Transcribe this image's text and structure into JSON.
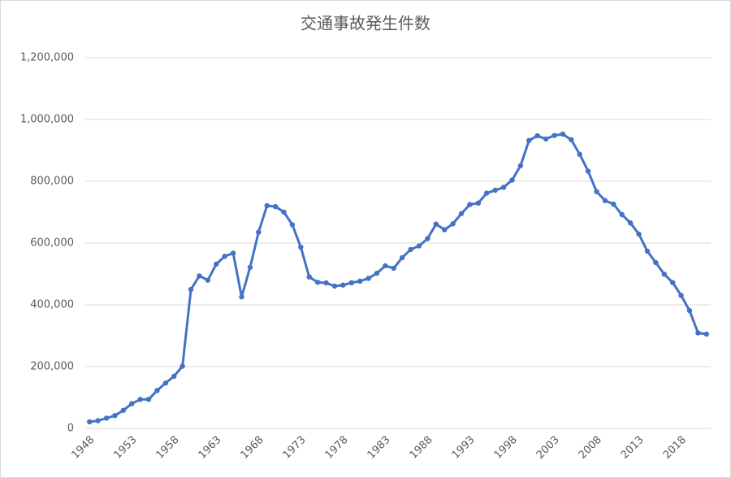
{
  "chart_data": {
    "type": "line",
    "title": "交通事故発生件数",
    "categories": [
      "1948",
      null,
      null,
      null,
      null,
      "1953",
      null,
      null,
      null,
      null,
      "1958",
      null,
      null,
      null,
      null,
      "1963",
      null,
      null,
      null,
      null,
      "1968",
      null,
      null,
      null,
      null,
      "1973",
      null,
      null,
      null,
      null,
      "1978",
      null,
      null,
      null,
      null,
      "1983",
      null,
      null,
      null,
      null,
      "1988",
      null,
      null,
      null,
      null,
      "1993",
      null,
      null,
      null,
      null,
      "1998",
      null,
      null,
      null,
      null,
      "2003",
      null,
      null,
      null,
      null,
      "2008",
      null,
      null,
      null,
      null,
      "2013",
      null,
      null,
      null,
      null,
      "2018",
      null,
      null,
      null
    ],
    "values": [
      21341,
      25113,
      33212,
      41423,
      58487,
      80019,
      93869,
      93981,
      122691,
      146833,
      168799,
      201292,
      449917,
      493693,
      479825,
      531966,
      557183,
      567286,
      425944,
      521481,
      635056,
      720880,
      718080,
      700290,
      659283,
      586713,
      490452,
      472938,
      471041,
      460649,
      464037,
      471573,
      476677,
      485578,
      502261,
      526362,
      518642,
      552788,
      579190,
      590723,
      614481,
      661363,
      643097,
      662392,
      695345,
      724675,
      729461,
      761794,
      771085,
      780401,
      803882,
      850371,
      931950,
      947253,
      936950,
      948281,
      952720,
      934346,
      887267,
      832704,
      766394,
      737628,
      725924,
      692084,
      665157,
      629033,
      573842,
      536899,
      499201,
      472165,
      430601,
      381237,
      309178,
      305196
    ],
    "color": "#4472c4",
    "ylim": [
      0,
      1200000
    ],
    "yticks": [
      0,
      {
        "value": 200000,
        "label": "200,000"
      },
      {
        "value": 400000,
        "label": "400,000"
      },
      {
        "value": 600000,
        "label": "600,000"
      },
      {
        "value": 800000,
        "label": "800,000"
      },
      {
        "value": 1000000,
        "label": "1,000,000"
      },
      {
        "value": 1200000,
        "label": "1,200,000"
      }
    ],
    "grid": true
  }
}
